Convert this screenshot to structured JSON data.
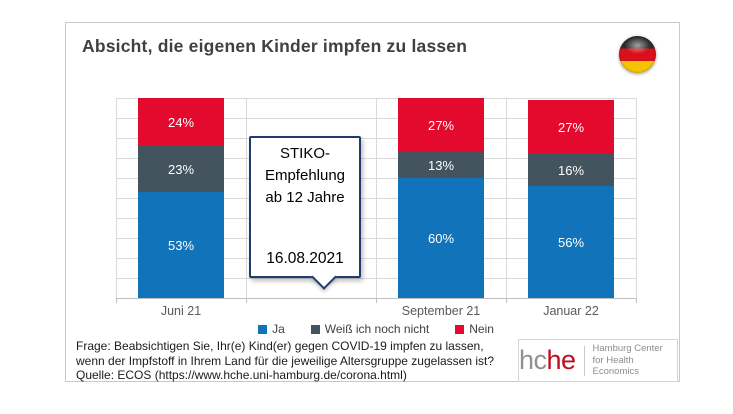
{
  "header": {
    "title": "Absicht, die eigenen Kinder impfen zu lassen",
    "flag_icon": "germany-flag-icon"
  },
  "chart_data": {
    "type": "bar",
    "stacked": true,
    "categories": [
      "Juni 21",
      "September 21",
      "Januar 22"
    ],
    "series": [
      {
        "name": "Ja",
        "color": "#1173b9",
        "values": [
          53,
          60,
          56
        ]
      },
      {
        "name": "Weiß ich noch nicht",
        "color": "#44545f",
        "values": [
          23,
          13,
          16
        ]
      },
      {
        "name": "Nein",
        "color": "#e40a2d",
        "values": [
          24,
          27,
          27
        ]
      }
    ],
    "value_suffix": "%",
    "ylim": [
      0,
      100
    ],
    "grid": true,
    "gridline_interval": 10,
    "legend_position": "bottom",
    "layout": {
      "num_slots": 4,
      "category_slots": [
        0,
        2,
        3
      ],
      "annotation_slot": 1
    }
  },
  "annotation": {
    "text_lines": [
      "STIKO-",
      "Empfehlung",
      "ab 12 Jahre"
    ],
    "date": "16.08.2021"
  },
  "footer": {
    "question_lines": [
      "Frage: Beabsichtigen Sie, Ihr(e) Kind(er) gegen COVID-19 impfen zu lassen,",
      "wenn der Impfstoff in Ihrem Land für die jeweilige Altersgruppe zugelassen ist?",
      "Quelle: ECOS (https://www.hche.uni-hamburg.de/corona.html)"
    ]
  },
  "logo": {
    "word_gray": "hc",
    "word_he_red": "he",
    "subtitle_line1": "Hamburg Center",
    "subtitle_line2": "for Health Economics",
    "gray_color": "#919191",
    "red_color": "#c00d1e"
  },
  "flag_colors": {
    "black": "#2e2e2e",
    "red": "#d8101b",
    "gold": "#f5c400"
  }
}
